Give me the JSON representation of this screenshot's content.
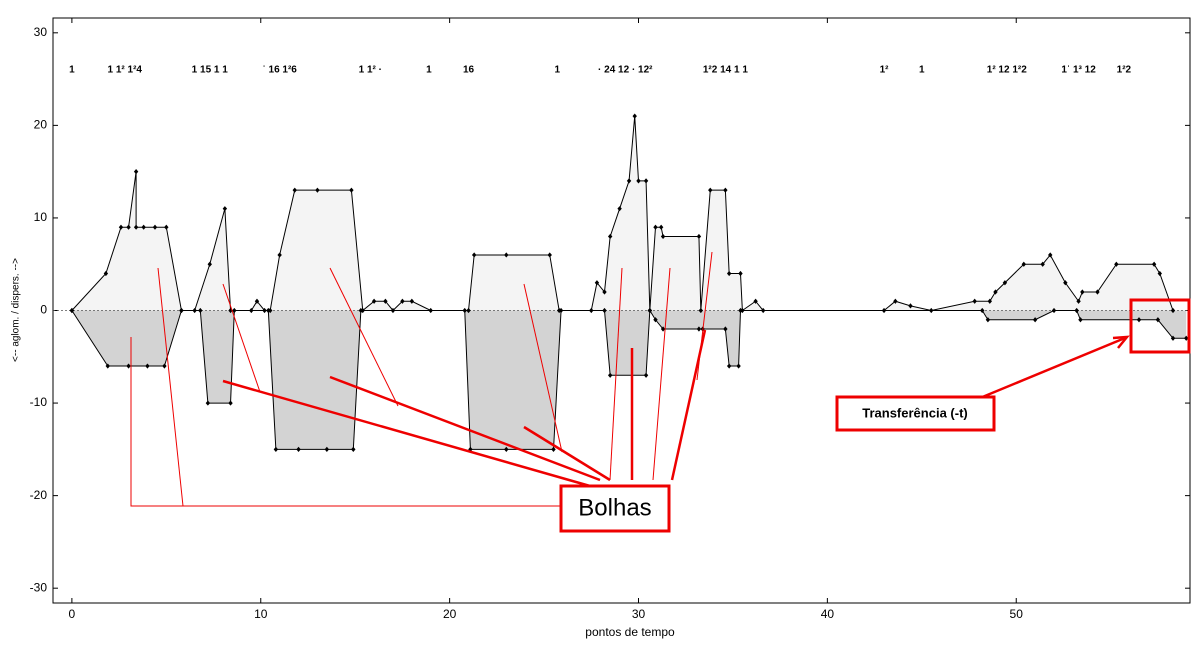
{
  "chart_data": {
    "type": "line",
    "xlabel": "pontos de tempo",
    "ylabel": "<-- aglom. / dispers. -->",
    "xlim": [
      -1,
      59.2
    ],
    "ylim": [
      -31.6,
      31.6
    ],
    "xticks": [
      0,
      10,
      20,
      30,
      40,
      50
    ],
    "yticks": [
      -30,
      -20,
      -10,
      0,
      10,
      20,
      30
    ],
    "series": [
      {
        "color": "#000000",
        "fill": "#f4f4f4",
        "x": [
          0,
          1.8,
          2.6,
          3,
          3.4,
          3.4,
          3.8,
          4.4,
          5,
          5.8,
          6.5,
          7.3,
          8.1,
          8.4,
          9.5,
          9.8,
          10.2,
          10.5,
          11,
          11.8,
          13,
          14.8,
          15.4,
          16,
          16.6,
          17,
          17.5,
          18,
          19,
          21,
          21.3,
          23,
          25.3,
          25.8,
          27.5,
          27.8,
          28.2,
          28.5,
          29,
          29.5,
          29.8,
          30,
          30.4,
          30.6,
          30.9,
          31.2,
          31.3,
          33.2,
          33.3,
          33.8,
          34.6,
          34.8,
          35.4,
          35.5,
          36.2,
          36.6,
          43,
          43.6,
          44.4,
          45.5,
          47.8,
          48.6,
          48.9,
          49.4,
          50.4,
          51.4,
          51.8,
          52.6,
          53.3,
          53.5,
          54.3,
          55.3,
          57.3,
          57.6,
          58.3
        ],
        "values": [
          0,
          4,
          9,
          9,
          15,
          9,
          9,
          9,
          9,
          0,
          0,
          5,
          11,
          0,
          0,
          1,
          0,
          0,
          6,
          13,
          13,
          13,
          0,
          1,
          1,
          0,
          1,
          1,
          0,
          0,
          6,
          6,
          6,
          0,
          0,
          3,
          2,
          8,
          11,
          14,
          21,
          14,
          14,
          0,
          9,
          9,
          8,
          8,
          0,
          13,
          13,
          4,
          4,
          0,
          1,
          0,
          0,
          1,
          0.5,
          0,
          1,
          1,
          2,
          3,
          5,
          5,
          6,
          3,
          1,
          2,
          2,
          5,
          5,
          4,
          0
        ]
      },
      {
        "color": "#000000",
        "fill": "#d3d3d3",
        "x": [
          0,
          1.9,
          3,
          4,
          4.9,
          5.8,
          6.8,
          7.2,
          8.4,
          8.6,
          10.4,
          10.8,
          12,
          13.5,
          14.9,
          15.3,
          20.8,
          21.1,
          23,
          25.5,
          25.9,
          28.2,
          28.5,
          30.4,
          30.6,
          30.9,
          31.3,
          33.2,
          33.4,
          34.6,
          34.8,
          35.3,
          35.4,
          48.2,
          48.5,
          51,
          52,
          53.2,
          53.4,
          56.5,
          57.5,
          58.3,
          59
        ],
        "values": [
          0,
          -6,
          -6,
          -6,
          -6,
          0,
          0,
          -10,
          -10,
          0,
          0,
          -15,
          -15,
          -15,
          -15,
          0,
          0,
          -15,
          -15,
          -15,
          0,
          0,
          -7,
          -7,
          0,
          -1,
          -2,
          -2,
          -2,
          -2,
          -6,
          -6,
          0,
          0,
          -1,
          -1,
          0,
          0,
          -1,
          -1,
          -1,
          -3,
          -3
        ]
      }
    ],
    "top_labels": [
      {
        "text": "1",
        "x": 0
      },
      {
        "text": "1 1² 1²4",
        "x": 2.8
      },
      {
        "text": "1 15 1 1",
        "x": 7.3
      },
      {
        "text": "ˈ 16 1²6",
        "x": 11
      },
      {
        "text": "1 1² ·",
        "x": 15.8
      },
      {
        "text": "1",
        "x": 18.9
      },
      {
        "text": "16",
        "x": 21
      },
      {
        "text": "1",
        "x": 25.7
      },
      {
        "text": "· 24 12 · 12²",
        "x": 29.3
      },
      {
        "text": "1²2 14 1 1",
        "x": 34.6
      },
      {
        "text": "1²",
        "x": 43
      },
      {
        "text": "1",
        "x": 45
      },
      {
        "text": "1² 12 1²2",
        "x": 49.5
      },
      {
        "text": "1ˈ 1³ 12",
        "x": 53.3
      },
      {
        "text": "1²2",
        "x": 55.7
      }
    ],
    "callouts": [
      "Bolhas",
      "Transferência (-t)"
    ]
  }
}
